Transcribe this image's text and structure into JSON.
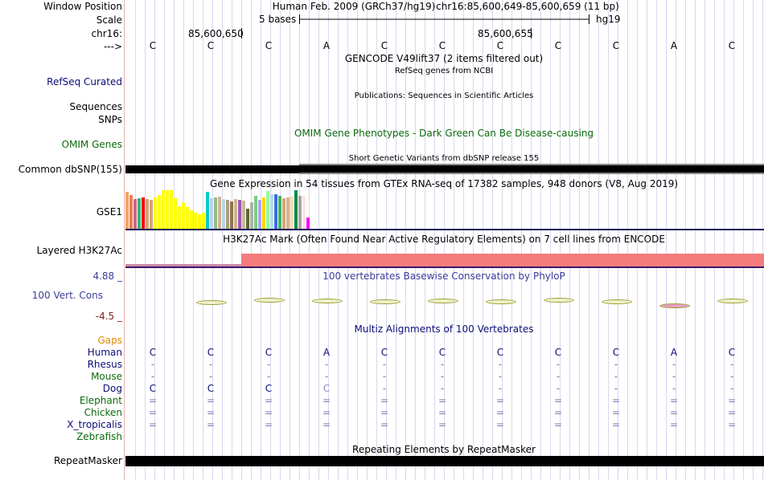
{
  "header": {
    "window_label": "Window Position",
    "scale_label": "Scale",
    "chrom_label": "chr16:",
    "strand_label": "--->",
    "assembly": "Human Feb. 2009 (GRCh37/hg19)",
    "position": "chr16:85,600,649-85,600,659 (11 bp)",
    "scale_text": "5 bases",
    "scale_db": "hg19",
    "coord1": "85,600,650",
    "coord2": "85,600,655"
  },
  "sequence": [
    "C",
    "C",
    "C",
    "A",
    "C",
    "C",
    "C",
    "C",
    "C",
    "A",
    "C"
  ],
  "tracks": {
    "gencode_title": "GENCODE V49lift37 (2 items filtered out)",
    "refseq_subtitle": "RefSeq genes from NCBI",
    "refseq_label": "RefSeq Curated",
    "publications_title": "Publications: Sequences in Scientific Articles",
    "sequences_label": "Sequences",
    "snps_label": "SNPs",
    "omim_title": "OMIM Gene Phenotypes - Dark Green Can Be Disease-causing",
    "omim_label": "OMIM Genes",
    "dbsnp_title": "Short Genetic Variants from dbSNP release 155",
    "dbsnp_label": "Common dbSNP(155)",
    "gtex_title": "Gene Expression in 54 tissues from GTEx RNA-seq of 17382 samples, 948 donors (V8, Aug 2019)",
    "gtex_label": "GSE1",
    "h3k27ac_title": "H3K27Ac Mark (Often Found Near Active Regulatory Elements) on 7 cell lines from ENCODE",
    "h3k27ac_label": "Layered H3K27Ac",
    "phylop_title": "100 vertebrates Basewise Conservation by PhyloP",
    "phylop_label": "100 Vert. Cons",
    "phylop_max": "4.88 _",
    "phylop_min": "-4.5 _",
    "multiz_title": "Multiz Alignments of 100 Vertebrates",
    "gaps_label": "Gaps",
    "repeat_title": "Repeating Elements by RepeatMasker",
    "repeat_label": "RepeatMasker"
  },
  "species": [
    {
      "name": "Human",
      "bases": [
        "C",
        "C",
        "C",
        "A",
        "C",
        "C",
        "C",
        "C",
        "C",
        "A",
        "C"
      ]
    },
    {
      "name": "Rhesus",
      "bases": [
        "-",
        "-",
        "-",
        "-",
        "-",
        "-",
        "-",
        "-",
        "-",
        "-",
        "-"
      ]
    },
    {
      "name": "Mouse",
      "bases": [
        "-",
        "-",
        "-",
        "-",
        "-",
        "-",
        "-",
        "-",
        "-",
        "-",
        "-"
      ]
    },
    {
      "name": "Dog",
      "bases": [
        "C",
        "C",
        "C",
        "C",
        "-",
        "-",
        "-",
        "-",
        "-",
        "-",
        "-"
      ]
    },
    {
      "name": "Elephant",
      "bases": [
        "=",
        "=",
        "=",
        "=",
        "=",
        "=",
        "=",
        "=",
        "=",
        "=",
        "="
      ]
    },
    {
      "name": "Chicken",
      "bases": [
        "=",
        "=",
        "=",
        "=",
        "=",
        "=",
        "=",
        "=",
        "=",
        "=",
        "="
      ]
    },
    {
      "name": "X_tropicalis",
      "bases": [
        "=",
        "=",
        "=",
        "=",
        "=",
        "=",
        "=",
        "=",
        "=",
        "=",
        "="
      ]
    },
    {
      "name": "Zebrafish",
      "bases": [
        "",
        "",
        "",
        "",
        "",
        "",
        "",
        "",
        "",
        "",
        ""
      ]
    }
  ],
  "gtex_colors": [
    "#f4a460",
    "#ee7b5a",
    "#bd6b8a",
    "#3cb371",
    "#ff0000",
    "#d2a679",
    "#d2a679",
    "#ffff00",
    "#ffff00",
    "#ffff00",
    "#ffff00",
    "#ffff00",
    "#ffff00",
    "#ffff00",
    "#ffff00",
    "#ffff00",
    "#ffff00",
    "#ffff00",
    "#ffff00",
    "#ffff00",
    "#00cdcd",
    "#bcd2ee",
    "#8fbc8f",
    "#d2b48c",
    "#bcd2ee",
    "#ab9d79",
    "#8b7355",
    "#d2b48c",
    "#9b59b6",
    "#cdb79e",
    "#556b2f",
    "#b0b0b0",
    "#7ccd7c",
    "#a6a6ff",
    "#ffd700",
    "#98fb98",
    "#b0e0e6",
    "#4169e1",
    "#3cb371",
    "#d2a679",
    "#d2b48c",
    "#ffdab9",
    "#008b45",
    "#a6a6a6",
    "#ffe4e1",
    "#ff00ff"
  ],
  "gtex_values": [
    0.95,
    0.88,
    0.78,
    0.8,
    0.82,
    0.78,
    0.74,
    0.82,
    0.88,
    0.99,
    0.99,
    0.99,
    0.8,
    0.58,
    0.68,
    0.56,
    0.48,
    0.42,
    0.38,
    0.42,
    0.95,
    0.8,
    0.82,
    0.84,
    0.78,
    0.75,
    0.7,
    0.78,
    0.76,
    0.72,
    0.52,
    0.68,
    0.86,
    0.75,
    0.82,
    0.98,
    0.9,
    0.9,
    0.86,
    0.8,
    0.82,
    0.84,
    0.99,
    0.86,
    0.86,
    0.3
  ],
  "phylop_scores": [
    0.05,
    0.08,
    0.15,
    0.12,
    0.1,
    0.12,
    0.1,
    0.14,
    0.11,
    -0.03,
    0.13
  ]
}
